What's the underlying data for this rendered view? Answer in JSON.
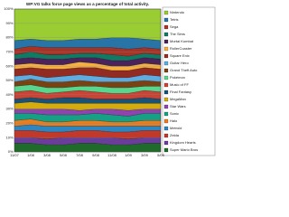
{
  "chart_data": {
    "type": "stacked_area",
    "title": "WP:VG talks force page views as a percentage of total activity.",
    "categories": [
      "11/07",
      "1/08",
      "3/08",
      "5/08",
      "7/08",
      "9/08",
      "11/08",
      "1/09",
      "3/09",
      "5/09"
    ],
    "ylim": [
      0,
      100
    ],
    "yticks": [
      {
        "value": 0,
        "label": "0%"
      },
      {
        "value": 10,
        "label": "10%"
      },
      {
        "value": 20,
        "label": "20%"
      },
      {
        "value": 30,
        "label": "30%"
      },
      {
        "value": 40,
        "label": "40%"
      },
      {
        "value": 50,
        "label": "50%"
      },
      {
        "value": 60,
        "label": "60%"
      },
      {
        "value": 70,
        "label": "70%"
      },
      {
        "value": 80,
        "label": "80%"
      },
      {
        "value": 90,
        "label": "90%"
      },
      {
        "value": 100,
        "label": "100%"
      }
    ],
    "grid": true,
    "legend": "right",
    "series": [
      {
        "name": "Super Mario Bros",
        "color": "#1f6b2a",
        "values": [
          6,
          6,
          5,
          5,
          6,
          6,
          5,
          5,
          6,
          6
        ]
      },
      {
        "name": "Kingdom Hearts",
        "color": "#6a3d9a",
        "values": [
          4,
          4,
          4,
          5,
          4,
          4,
          5,
          4,
          4,
          4
        ]
      },
      {
        "name": "Zelda",
        "color": "#c0392b",
        "values": [
          5,
          5,
          5,
          4,
          5,
          5,
          4,
          5,
          5,
          5
        ]
      },
      {
        "name": "Metroid",
        "color": "#2e86c1",
        "values": [
          3,
          4,
          4,
          4,
          3,
          3,
          4,
          4,
          3,
          3
        ]
      },
      {
        "name": "Halo",
        "color": "#e67e22",
        "values": [
          4,
          4,
          3,
          3,
          4,
          4,
          3,
          3,
          4,
          4
        ]
      },
      {
        "name": "Sonic",
        "color": "#16a085",
        "values": [
          5,
          4,
          5,
          5,
          4,
          5,
          5,
          4,
          5,
          5
        ]
      },
      {
        "name": "Star Wars",
        "color": "#8e44ad",
        "values": [
          3,
          3,
          4,
          4,
          3,
          3,
          4,
          4,
          3,
          3
        ]
      },
      {
        "name": "MegaMan",
        "color": "#d4ac0d",
        "values": [
          4,
          5,
          4,
          4,
          5,
          4,
          4,
          5,
          4,
          4
        ]
      },
      {
        "name": "Final Fantasy",
        "color": "#1a5276",
        "values": [
          3,
          3,
          3,
          4,
          4,
          3,
          3,
          3,
          4,
          3
        ]
      },
      {
        "name": "Music of FF",
        "color": "#cb4335",
        "values": [
          5,
          5,
          4,
          4,
          5,
          5,
          4,
          4,
          5,
          5
        ]
      },
      {
        "name": "Pokémon",
        "color": "#58d68d",
        "values": [
          4,
          4,
          4,
          3,
          3,
          4,
          4,
          4,
          3,
          4
        ]
      },
      {
        "name": "Grand Theft Auto",
        "color": "#784212",
        "values": [
          3,
          4,
          4,
          4,
          4,
          3,
          4,
          4,
          4,
          3
        ]
      },
      {
        "name": "Guitar Hero",
        "color": "#5dade2",
        "values": [
          4,
          3,
          3,
          4,
          4,
          4,
          3,
          3,
          4,
          4
        ]
      },
      {
        "name": "Square Enix",
        "color": "#922b21",
        "values": [
          5,
          5,
          6,
          5,
          5,
          6,
          5,
          5,
          5,
          5
        ]
      },
      {
        "name": "RollerCoaster",
        "color": "#f5b041",
        "values": [
          3,
          3,
          3,
          3,
          4,
          3,
          3,
          3,
          3,
          3
        ]
      },
      {
        "name": "Mortal Kombat",
        "color": "#4a235a",
        "values": [
          4,
          4,
          4,
          4,
          3,
          4,
          4,
          4,
          4,
          4
        ]
      },
      {
        "name": "The Sims",
        "color": "#117a65",
        "values": [
          3,
          4,
          3,
          3,
          3,
          3,
          4,
          3,
          3,
          3
        ]
      },
      {
        "name": "Sega",
        "color": "#a93226",
        "values": [
          4,
          4,
          5,
          5,
          4,
          4,
          5,
          5,
          4,
          4
        ]
      },
      {
        "name": "Tetris",
        "color": "#2874a6",
        "values": [
          6,
          5,
          5,
          5,
          6,
          6,
          7,
          8,
          6,
          6
        ]
      },
      {
        "name": "Nintendo",
        "color": "#9acd32",
        "values": [
          22,
          21,
          22,
          22,
          21,
          21,
          20,
          20,
          21,
          22
        ]
      }
    ]
  }
}
